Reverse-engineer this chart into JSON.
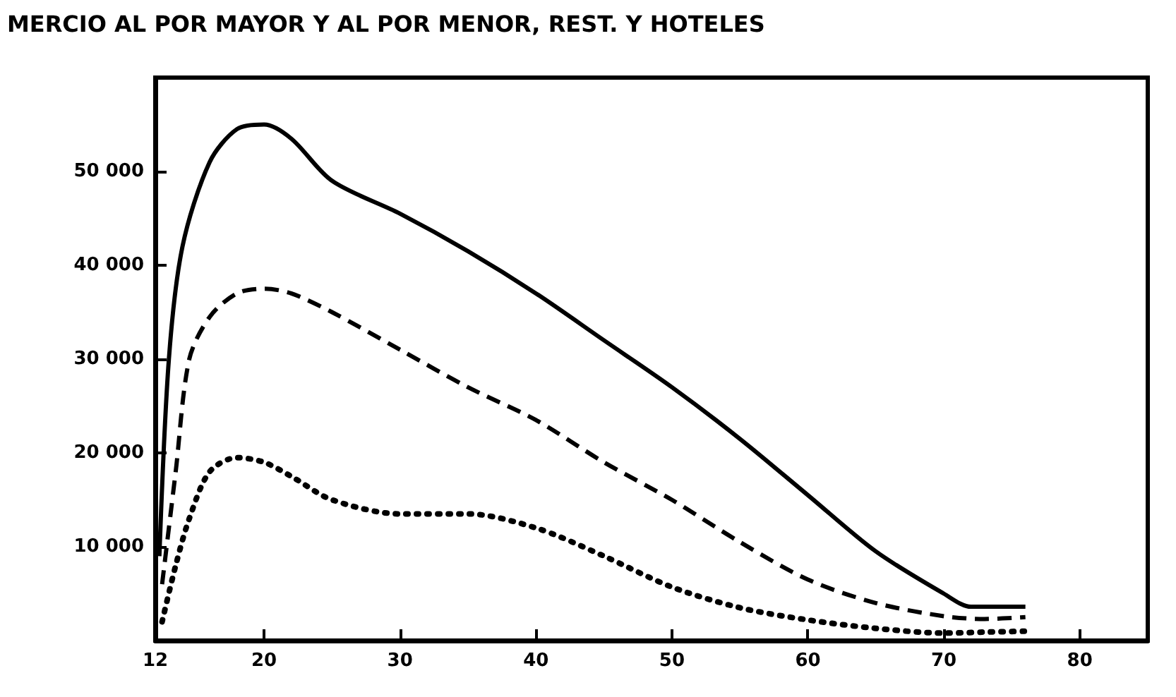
{
  "chart_data": {
    "type": "line",
    "title": "MERCIO AL POR MAYOR Y AL POR MENOR, REST. Y HOTELES",
    "xlim": [
      12,
      85
    ],
    "xticks": [
      12,
      20,
      30,
      40,
      50,
      60,
      70,
      80
    ],
    "ylim": [
      0,
      60000
    ],
    "yticks": [
      {
        "value": 10000,
        "label": "10 000"
      },
      {
        "value": 20000,
        "label": "20 000"
      },
      {
        "value": 30000,
        "label": "30 000"
      },
      {
        "value": 40000,
        "label": "40 000"
      },
      {
        "value": 50000,
        "label": "50 000"
      }
    ],
    "marker": "none",
    "series": [
      {
        "color": "#000000",
        "line_style": "solid",
        "x": [
          12.3,
          13,
          14,
          16,
          18,
          20,
          22,
          25,
          30,
          35,
          40,
          45,
          50,
          55,
          60,
          65,
          70,
          72,
          76
        ],
        "values": [
          9000,
          30000,
          42000,
          51000,
          54500,
          55000,
          53500,
          49000,
          45500,
          41500,
          37000,
          32000,
          27000,
          21500,
          15500,
          9500,
          5000,
          3600,
          3600
        ]
      },
      {
        "color": "#000000",
        "line_style": "dashed",
        "x": [
          12.5,
          13.5,
          14.5,
          16,
          18,
          20,
          22,
          25,
          30,
          35,
          40,
          45,
          50,
          55,
          60,
          65,
          70,
          73,
          76
        ],
        "values": [
          6000,
          18000,
          30000,
          34500,
          37000,
          37500,
          37000,
          35000,
          31000,
          27000,
          23500,
          19000,
          15000,
          10500,
          6500,
          4000,
          2600,
          2300,
          2500
        ]
      },
      {
        "color": "#000000",
        "line_style": "dotted",
        "x": [
          12.5,
          13.5,
          14.5,
          16,
          18,
          20,
          22,
          25,
          30,
          35,
          40,
          45,
          50,
          55,
          60,
          65,
          70,
          73,
          76
        ],
        "values": [
          2000,
          8000,
          13000,
          18000,
          19500,
          19000,
          17500,
          15000,
          13500,
          13500,
          12000,
          9000,
          5700,
          3500,
          2200,
          1300,
          800,
          900,
          1000
        ]
      }
    ]
  }
}
